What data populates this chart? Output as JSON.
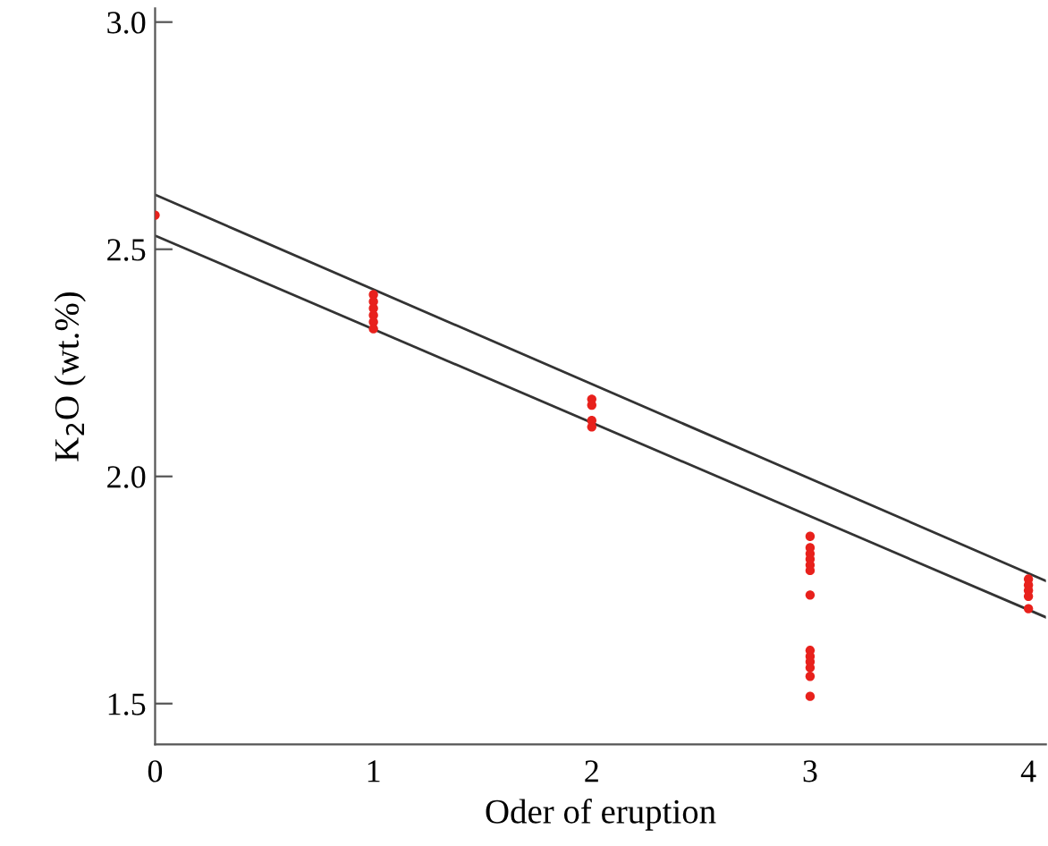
{
  "chart_data": {
    "type": "scatter",
    "xlabel": "Oder of eruption",
    "ylabel": "K$_{2}$O (wt.%)",
    "xlim": [
      0,
      4.08
    ],
    "ylim": [
      1.41,
      3.03
    ],
    "xticks": [
      0,
      1,
      2,
      3,
      4
    ],
    "yticks": [
      {
        "value": 1.5,
        "label": "1.5"
      },
      {
        "value": 2.0,
        "label": "2.0"
      },
      {
        "value": 2.5,
        "label": "2.5"
      },
      {
        "value": 3.0,
        "label": "3.0"
      }
    ],
    "grid": false,
    "legend": false,
    "marker": "circle",
    "series": [
      {
        "color": "#e8211c",
        "x": [
          0,
          1,
          1,
          1,
          1,
          1,
          1,
          2,
          2,
          2,
          2,
          3,
          3,
          3,
          3,
          3,
          3,
          3,
          3,
          3,
          3,
          3,
          3,
          3,
          4,
          4,
          4,
          4,
          4
        ],
        "values": [
          2.575,
          2.4,
          2.385,
          2.37,
          2.355,
          2.34,
          2.325,
          2.17,
          2.157,
          2.123,
          2.109,
          1.868,
          1.843,
          1.83,
          1.818,
          1.805,
          1.793,
          1.739,
          1.617,
          1.604,
          1.592,
          1.579,
          1.56,
          1.516,
          1.774,
          1.761,
          1.749,
          1.736,
          1.709
        ]
      },
      {
        "type": "line",
        "color": "#333333",
        "x": [
          0,
          4.08
        ],
        "values": [
          2.62,
          1.77
        ],
        "marker": "none",
        "line_style": "solid"
      },
      {
        "type": "line",
        "color": "#333333",
        "x": [
          0,
          4.08
        ],
        "values": [
          2.53,
          1.69
        ],
        "marker": "none",
        "line_style": "solid"
      }
    ]
  }
}
